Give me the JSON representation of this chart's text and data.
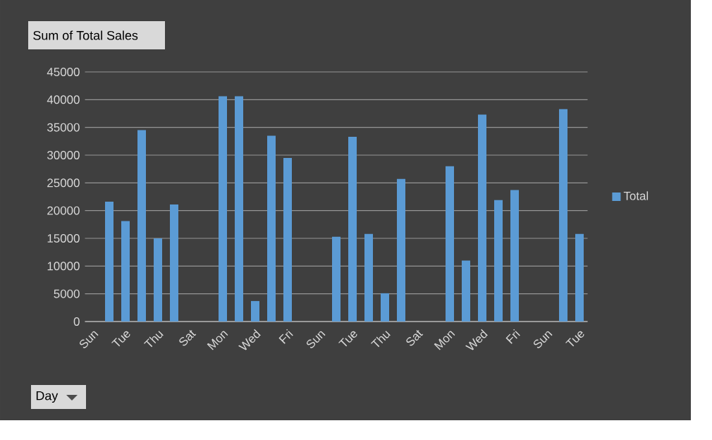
{
  "chart_data": {
    "type": "bar",
    "title": "Sum of Total Sales",
    "annotations": [
      "Day"
    ],
    "categories": [
      "Sun",
      null,
      "Tue",
      null,
      "Thu",
      null,
      "Sat",
      null,
      "Mon",
      null,
      "Wed",
      null,
      "Fri",
      null,
      "Sun",
      null,
      "Tue",
      null,
      "Thu",
      null,
      "Sat",
      null,
      "Mon",
      null,
      "Wed",
      null,
      "Fri",
      null,
      "Sun",
      null,
      "Tue"
    ],
    "series": [
      {
        "name": "Total",
        "color": "#5b9bd5",
        "values": [
          null,
          21600,
          18100,
          34500,
          15000,
          21100,
          null,
          null,
          40600,
          40600,
          3700,
          33500,
          29500,
          null,
          null,
          15300,
          33300,
          15800,
          5100,
          25700,
          null,
          null,
          28000,
          11000,
          37300,
          21900,
          23700,
          null,
          null,
          38300,
          15800
        ]
      }
    ],
    "ylim": [
      0,
      45000
    ],
    "yticks": [
      0,
      5000,
      10000,
      15000,
      20000,
      25000,
      30000,
      35000,
      40000,
      45000
    ],
    "grid": "y",
    "legend": "right"
  }
}
